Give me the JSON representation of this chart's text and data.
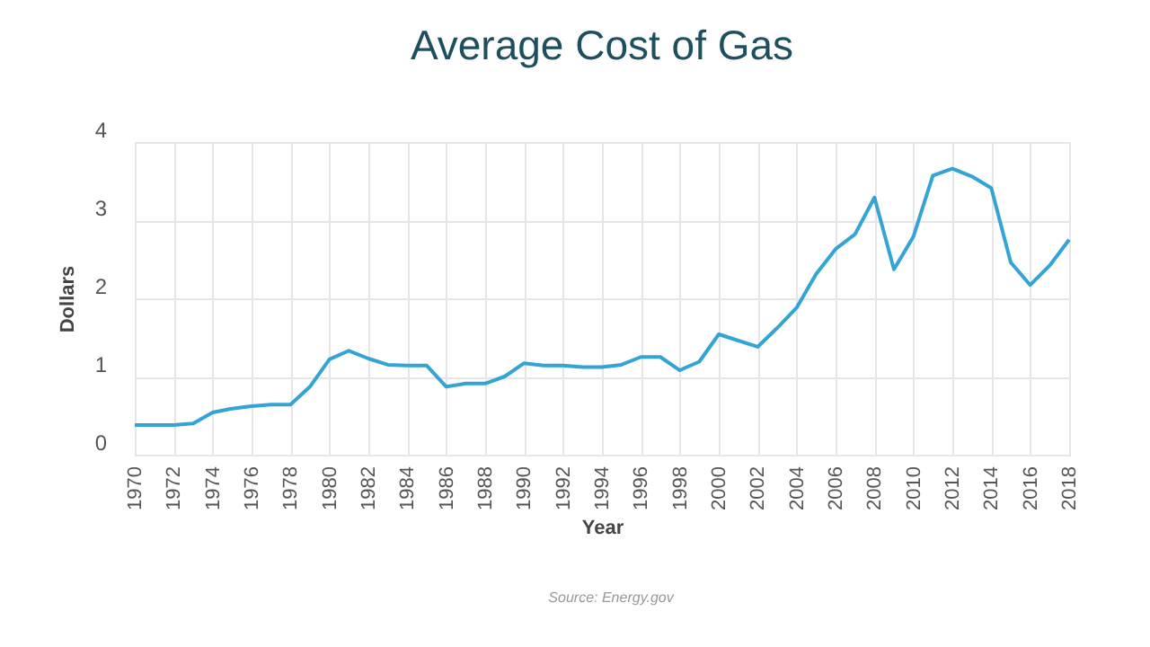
{
  "chart_data": {
    "type": "line",
    "title": "Average Cost of Gas",
    "xlabel": "Year",
    "ylabel": "Dollars",
    "annotations": [
      "Source: Energy.gov"
    ],
    "x": [
      1970,
      1971,
      1972,
      1973,
      1974,
      1975,
      1976,
      1977,
      1978,
      1979,
      1980,
      1981,
      1982,
      1983,
      1984,
      1985,
      1986,
      1987,
      1988,
      1989,
      1990,
      1991,
      1992,
      1993,
      1994,
      1995,
      1996,
      1997,
      1998,
      1999,
      2000,
      2001,
      2002,
      2003,
      2004,
      2005,
      2006,
      2007,
      2008,
      2009,
      2010,
      2011,
      2012,
      2013,
      2014,
      2015,
      2016,
      2017,
      2018
    ],
    "series": [
      {
        "color": "#34a4d4",
        "values": [
          0.38,
          0.38,
          0.38,
          0.4,
          0.54,
          0.59,
          0.62,
          0.64,
          0.64,
          0.87,
          1.22,
          1.33,
          1.23,
          1.15,
          1.14,
          1.14,
          0.87,
          0.91,
          0.91,
          1.0,
          1.17,
          1.14,
          1.14,
          1.12,
          1.12,
          1.15,
          1.25,
          1.25,
          1.08,
          1.19,
          1.54,
          1.46,
          1.38,
          1.62,
          1.88,
          2.31,
          2.63,
          2.82,
          3.29,
          2.37,
          2.79,
          3.57,
          3.66,
          3.56,
          3.41,
          2.46,
          2.17,
          2.42,
          2.75
        ]
      }
    ],
    "xlim": [
      1970,
      2018
    ],
    "xticks": [
      1970,
      1972,
      1974,
      1976,
      1978,
      1980,
      1982,
      1984,
      1986,
      1988,
      1990,
      1992,
      1994,
      1996,
      1998,
      2000,
      2002,
      2004,
      2006,
      2008,
      2010,
      2012,
      2014,
      2016,
      2018
    ],
    "ylim": [
      0,
      4
    ],
    "yticks": [
      0,
      1,
      2,
      3,
      4
    ],
    "grid": true,
    "line_style": "solid"
  }
}
